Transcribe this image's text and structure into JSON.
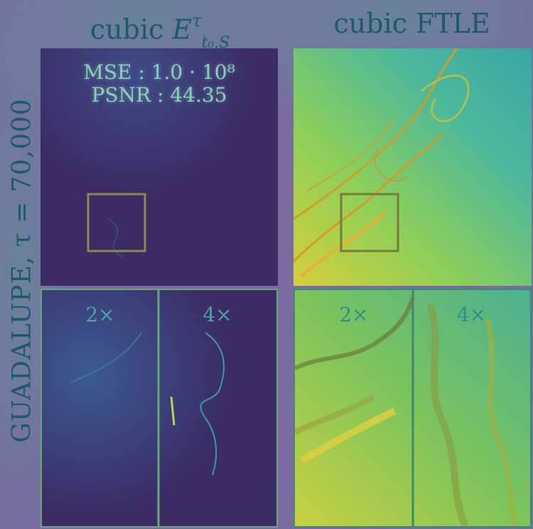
{
  "columns": {
    "left_title": {
      "prefix": "cubic",
      "symbol": "E",
      "superscript": "τ",
      "subscript": "t₀,S"
    },
    "right_title": "cubic FTLE"
  },
  "row_label": "GUADALUPE, τ = 70,000",
  "left_panel": {
    "mse_label": "MSE : 1.0 · 10⁸",
    "psnr_label": "PSNR : 44.35",
    "zoom_2x": "2×",
    "zoom_4x": "4×"
  },
  "right_panel": {
    "zoom_2x": "2×",
    "zoom_4x": "4×"
  },
  "colors": {
    "dark_field": "#3b2c66",
    "frame": "#8a8a4a",
    "divider": "#6aa47a",
    "bright_yellow": "#e8d44a",
    "teal": "#2f9c94"
  }
}
